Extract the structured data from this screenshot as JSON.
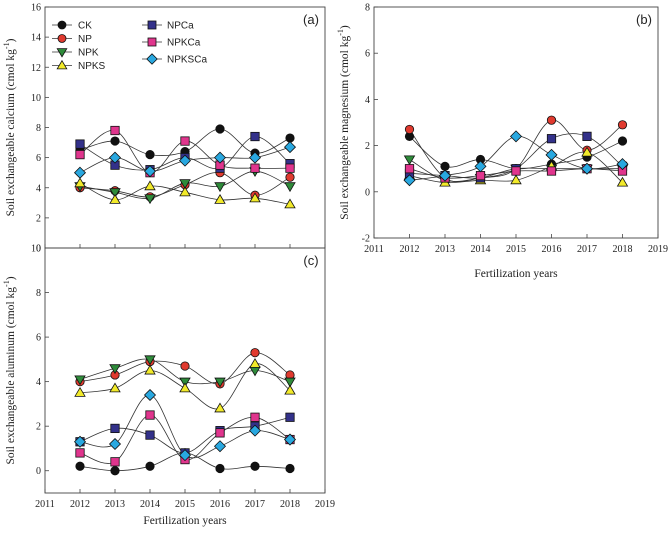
{
  "series_styles": [
    {
      "name": "CK",
      "marker": "circle",
      "color": "#111111"
    },
    {
      "name": "NP",
      "marker": "circle",
      "color": "#e03a2f"
    },
    {
      "name": "NPK",
      "marker": "triangle-down",
      "color": "#2e8b3a"
    },
    {
      "name": "NPKS",
      "marker": "triangle-up",
      "color": "#f2ea2a"
    },
    {
      "name": "NPCa",
      "marker": "square",
      "color": "#33318a"
    },
    {
      "name": "NPKCa",
      "marker": "square",
      "color": "#e0358d"
    },
    {
      "name": "NPKSCa",
      "marker": "diamond",
      "color": "#29a8e0"
    }
  ],
  "chart_data": [
    {
      "type": "line",
      "panel_label": "(a)",
      "ylabel_main": "Soil exchangeable calcium (cmol kg",
      "ylabel_sup": "-1",
      "ylabel_tail": ")",
      "xlabel": "",
      "x": [
        2012,
        2013,
        2014,
        2015,
        2016,
        2017,
        2018
      ],
      "xlim": [
        2011,
        2019
      ],
      "ylim": [
        0,
        16
      ],
      "y_ticks": [
        0,
        2,
        4,
        6,
        8,
        10,
        12,
        14,
        16
      ],
      "series": [
        {
          "name": "CK",
          "values": [
            6.5,
            7.1,
            6.2,
            6.4,
            7.9,
            6.3,
            7.3
          ]
        },
        {
          "name": "NP",
          "values": [
            4.0,
            3.8,
            3.4,
            4.2,
            5.0,
            3.5,
            4.7
          ]
        },
        {
          "name": "NPK",
          "values": [
            4.1,
            3.7,
            3.3,
            4.3,
            4.1,
            5.1,
            4.1
          ]
        },
        {
          "name": "NPKS",
          "values": [
            4.3,
            3.2,
            4.1,
            3.7,
            3.2,
            3.3,
            2.9
          ]
        },
        {
          "name": "NPCa",
          "values": [
            6.9,
            5.5,
            5.2,
            6.0,
            5.3,
            7.4,
            5.6
          ]
        },
        {
          "name": "NPKCa",
          "values": [
            6.2,
            7.8,
            5.0,
            7.1,
            5.5,
            5.3,
            5.3
          ]
        },
        {
          "name": "NPKSCa",
          "values": [
            5.0,
            6.0,
            5.1,
            5.8,
            6.0,
            6.0,
            6.7
          ]
        }
      ]
    },
    {
      "type": "line",
      "panel_label": "(b)",
      "ylabel_main": "Soil exchangeable magnesium (cmol kg",
      "ylabel_sup": "-1",
      "ylabel_tail": ")",
      "xlabel": "Fertilization years",
      "x": [
        2012,
        2013,
        2014,
        2015,
        2016,
        2017,
        2018
      ],
      "xlim": [
        2011,
        2019
      ],
      "ylim": [
        -2,
        8
      ],
      "y_ticks": [
        -2,
        0,
        2,
        4,
        6,
        8
      ],
      "x_ticks": [
        2011,
        2012,
        2013,
        2014,
        2015,
        2016,
        2017,
        2018,
        2019
      ],
      "series": [
        {
          "name": "CK",
          "values": [
            2.4,
            1.1,
            1.4,
            1.0,
            1.2,
            1.5,
            2.2
          ]
        },
        {
          "name": "NP",
          "values": [
            2.7,
            0.6,
            0.6,
            1.0,
            3.1,
            1.8,
            2.9
          ]
        },
        {
          "name": "NPK",
          "values": [
            1.4,
            0.5,
            0.6,
            1.0,
            1.0,
            1.0,
            1.0
          ]
        },
        {
          "name": "NPKS",
          "values": [
            0.7,
            0.4,
            0.5,
            0.5,
            1.1,
            1.7,
            0.4
          ]
        },
        {
          "name": "NPCa",
          "values": [
            0.8,
            0.7,
            0.6,
            1.0,
            2.3,
            2.4,
            1.1
          ]
        },
        {
          "name": "NPKCa",
          "values": [
            1.0,
            0.6,
            0.7,
            0.9,
            0.9,
            1.0,
            0.9
          ]
        },
        {
          "name": "NPKSCa",
          "values": [
            0.5,
            0.7,
            1.1,
            2.4,
            1.6,
            1.0,
            1.2
          ]
        }
      ]
    },
    {
      "type": "line",
      "panel_label": "(c)",
      "ylabel_main": "Soil exchangeable aluminum (cmol kg",
      "ylabel_sup": "-1",
      "ylabel_tail": ")",
      "xlabel": "Fertilization years",
      "x": [
        2012,
        2013,
        2014,
        2015,
        2016,
        2017,
        2018
      ],
      "xlim": [
        2011,
        2019
      ],
      "ylim": [
        -1,
        10
      ],
      "y_ticks": [
        0,
        2,
        4,
        6,
        8,
        10
      ],
      "x_ticks": [
        2011,
        2012,
        2013,
        2014,
        2015,
        2016,
        2017,
        2018,
        2019
      ],
      "series": [
        {
          "name": "CK",
          "values": [
            0.2,
            0.0,
            0.2,
            0.8,
            0.1,
            0.2,
            0.1
          ]
        },
        {
          "name": "NP",
          "values": [
            4.0,
            4.3,
            4.9,
            4.7,
            3.9,
            5.3,
            4.3
          ]
        },
        {
          "name": "NPK",
          "values": [
            4.1,
            4.6,
            5.0,
            4.0,
            4.0,
            4.5,
            4.0
          ]
        },
        {
          "name": "NPKS",
          "values": [
            3.5,
            3.7,
            4.5,
            3.7,
            2.8,
            4.8,
            3.6
          ]
        },
        {
          "name": "NPCa",
          "values": [
            1.3,
            1.9,
            1.6,
            0.8,
            1.8,
            2.0,
            2.4
          ]
        },
        {
          "name": "NPKCa",
          "values": [
            0.8,
            0.4,
            2.5,
            0.5,
            1.7,
            2.4,
            1.4
          ]
        },
        {
          "name": "NPKSCa",
          "values": [
            1.3,
            1.2,
            3.4,
            0.7,
            1.1,
            1.8,
            1.4
          ]
        }
      ]
    }
  ]
}
